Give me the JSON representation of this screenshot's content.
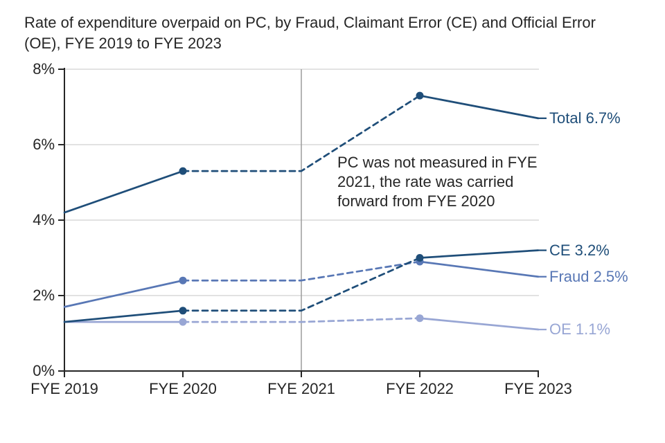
{
  "page": {
    "background": "#ffffff"
  },
  "chart_data": {
    "type": "line",
    "title": "Rate of expenditure overpaid on PC, by Fraud, Claimant Error (CE) and Official Error (OE), FYE 2019 to FYE 2023",
    "categories": [
      "FYE 2019",
      "FYE 2020",
      "FYE 2021",
      "FYE 2022",
      "FYE 2023"
    ],
    "y_ticks": {
      "labels": [
        "0%",
        "2%",
        "4%",
        "6%",
        "8%"
      ],
      "values": [
        0,
        2,
        4,
        6,
        8
      ]
    },
    "ylim": [
      0,
      8
    ],
    "grid": "horizontal gridlines at 2% intervals",
    "legend_position": "end-of-line labels at right",
    "series": [
      {
        "name": "Total",
        "color": "#1F4E79",
        "values": [
          4.2,
          5.3,
          5.3,
          7.3,
          6.7
        ],
        "end_label": "Total 6.7%",
        "dashed_between": [
          "FYE 2020",
          "FYE 2022"
        ],
        "marker_at": [
          "FYE 2020",
          "FYE 2022"
        ]
      },
      {
        "name": "CE",
        "color": "#1F4E79",
        "values": [
          1.3,
          1.6,
          1.6,
          3.0,
          3.2
        ],
        "end_label": "CE 3.2%",
        "dashed_between": [
          "FYE 2020",
          "FYE 2022"
        ],
        "marker_at": [
          "FYE 2020",
          "FYE 2022"
        ]
      },
      {
        "name": "Fraud",
        "color": "#5877B5",
        "values": [
          1.7,
          2.4,
          2.4,
          2.9,
          2.5
        ],
        "end_label": "Fraud 2.5%",
        "dashed_between": [
          "FYE 2020",
          "FYE 2022"
        ],
        "marker_at": [
          "FYE 2020",
          "FYE 2022"
        ]
      },
      {
        "name": "OE",
        "color": "#98A6D4",
        "values": [
          1.3,
          1.3,
          1.3,
          1.4,
          1.1
        ],
        "end_label": "OE 1.1%",
        "dashed_between": [
          "FYE 2020",
          "FYE 2022"
        ],
        "marker_at": [
          "FYE 2020",
          "FYE 2022"
        ]
      }
    ],
    "annotation": {
      "text": "PC was not measured in FYE 2021, the rate was carried forward from FYE 2020"
    },
    "vertical_reference_line": "FYE 2021",
    "colors": {
      "grid": "#D9D9D9",
      "axis": "#262626",
      "reference_line": "#9B9B9B",
      "text": "#262626"
    }
  }
}
